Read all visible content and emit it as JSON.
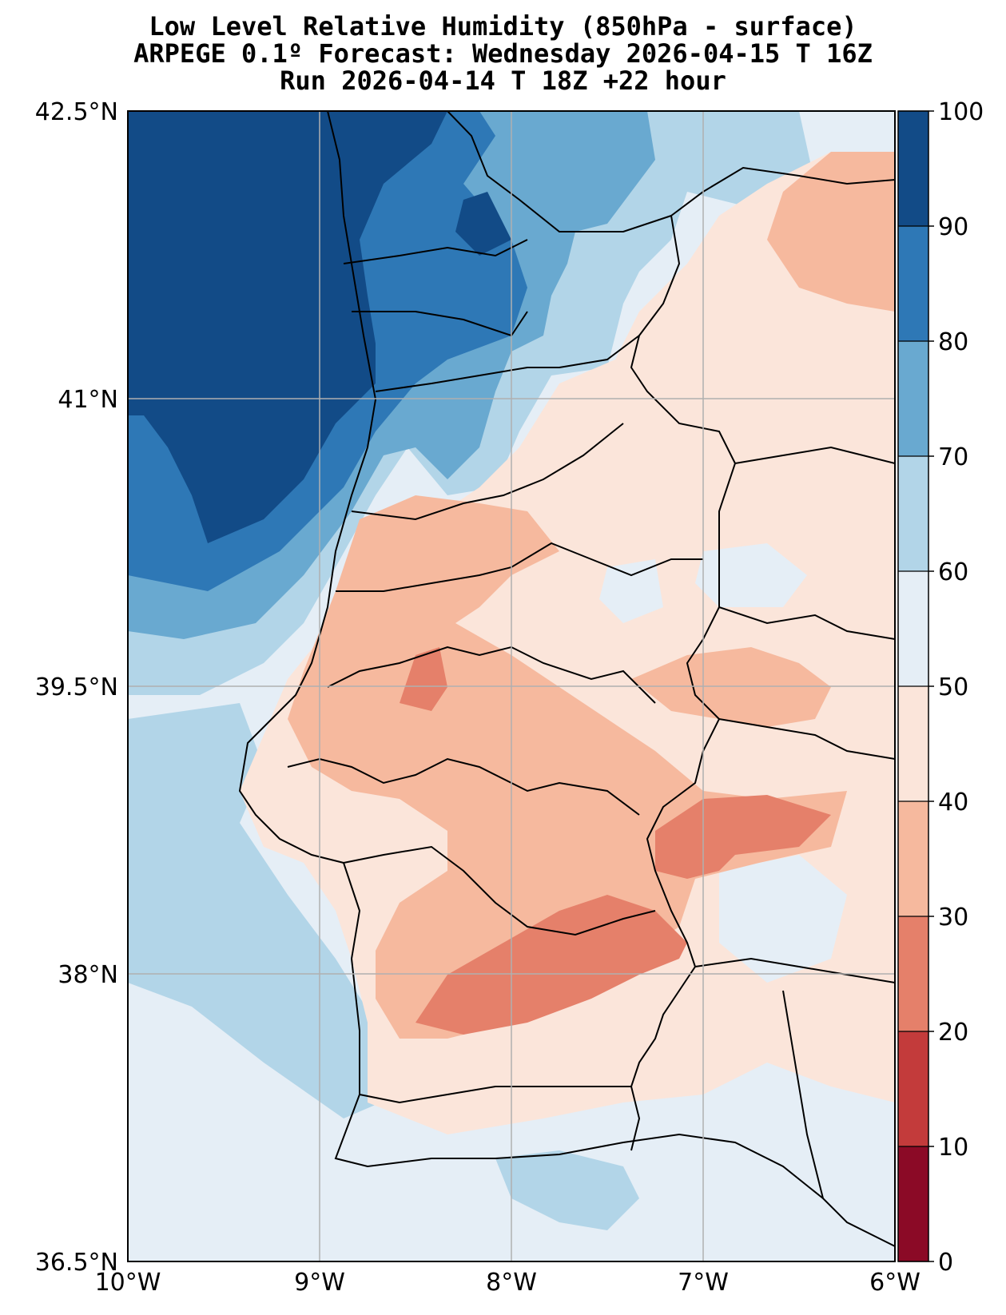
{
  "title_lines": [
    "Low Level Relative Humidity (850hPa - surface)",
    "ARPEGE 0.1º Forecast: Wednesday 2026-04-15 T 16Z",
    "Run 2026-04-14 T 18Z +22 hour"
  ],
  "map": {
    "lon_range": [
      -10,
      -6
    ],
    "lat_range": [
      36.5,
      42.5
    ],
    "grid": true,
    "x_ticks": [
      {
        "lon": -10,
        "label": "10°W"
      },
      {
        "lon": -9,
        "label": "9°W"
      },
      {
        "lon": -8,
        "label": "8°W"
      },
      {
        "lon": -7,
        "label": "7°W"
      },
      {
        "lon": -6,
        "label": "6°W"
      }
    ],
    "y_ticks": [
      {
        "lat": 42.5,
        "label": "42.5°N"
      },
      {
        "lat": 41,
        "label": "41°N"
      },
      {
        "lat": 39.5,
        "label": "39.5°N"
      },
      {
        "lat": 38,
        "label": "38°N"
      },
      {
        "lat": 36.5,
        "label": "36.5°N"
      }
    ]
  },
  "colorbar": {
    "levels": [
      0,
      10,
      20,
      30,
      40,
      50,
      60,
      70,
      80,
      90,
      100
    ],
    "colors": [
      "#8b0a26",
      "#c33b3b",
      "#e5806a",
      "#f6b99e",
      "#fbe5da",
      "#e5eef6",
      "#b2d5e8",
      "#69a9d0",
      "#2e78b6",
      "#124b87"
    ],
    "tick_labels": [
      "0",
      "10",
      "20",
      "30",
      "40",
      "50",
      "60",
      "70",
      "80",
      "90",
      "100"
    ]
  }
}
